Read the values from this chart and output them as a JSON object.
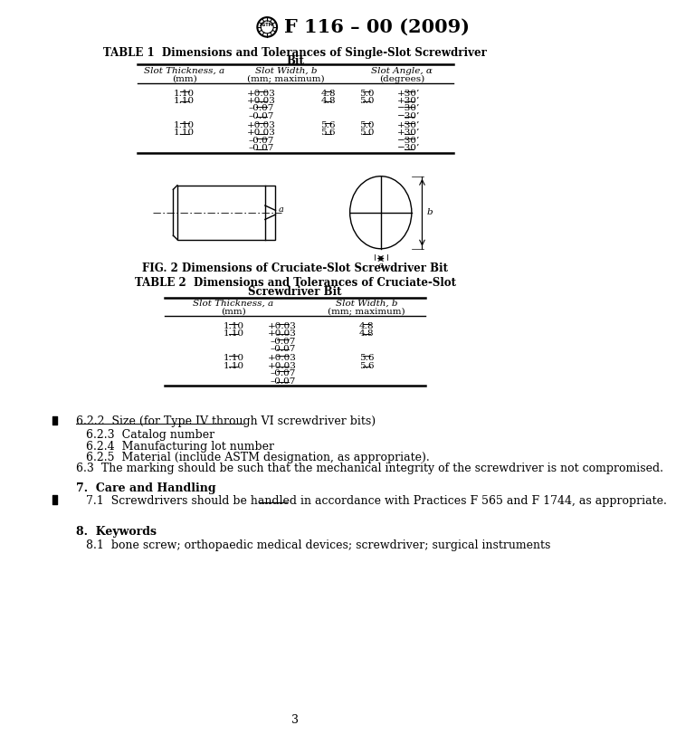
{
  "page_title": "F 116 – 00 (2009)",
  "bg_color": "#ffffff",
  "text_color": "#000000",
  "page_number": "3",
  "fig2_caption": "FIG. 2 Dimensions of Cruciate-Slot Screwdriver Bit",
  "section_texts": [
    {
      "text": "6.2.2  Size (for Type IV through VI screwdriver bits)",
      "underline": true,
      "bar": true
    },
    {
      "text": "6.2.3  Catalog number",
      "underline": false,
      "bar": false
    },
    {
      "text": "6.2.4  Manufacturing lot number",
      "underline": false,
      "bar": false
    },
    {
      "text": "6.2.5  Material (include ASTM designation, as appropriate).",
      "underline": false,
      "bar": false
    },
    {
      "text": "6.3  The marking should be such that the mechanical integrity of the screwdriver is not compromised.",
      "underline": false,
      "bar": false
    }
  ],
  "section7_header": "7.  Care and Handling",
  "section7_pre": "7.1  Screwdrivers should be handled in accordance with ",
  "section7_underlined": "Practices",
  "section7_post": " F 565 and F 1744, as appropriate.",
  "section8_header": "8.  Keywords",
  "section8_text": "8.1  bone screw; orthopaedic medical devices; screwdriver; surgical instruments"
}
